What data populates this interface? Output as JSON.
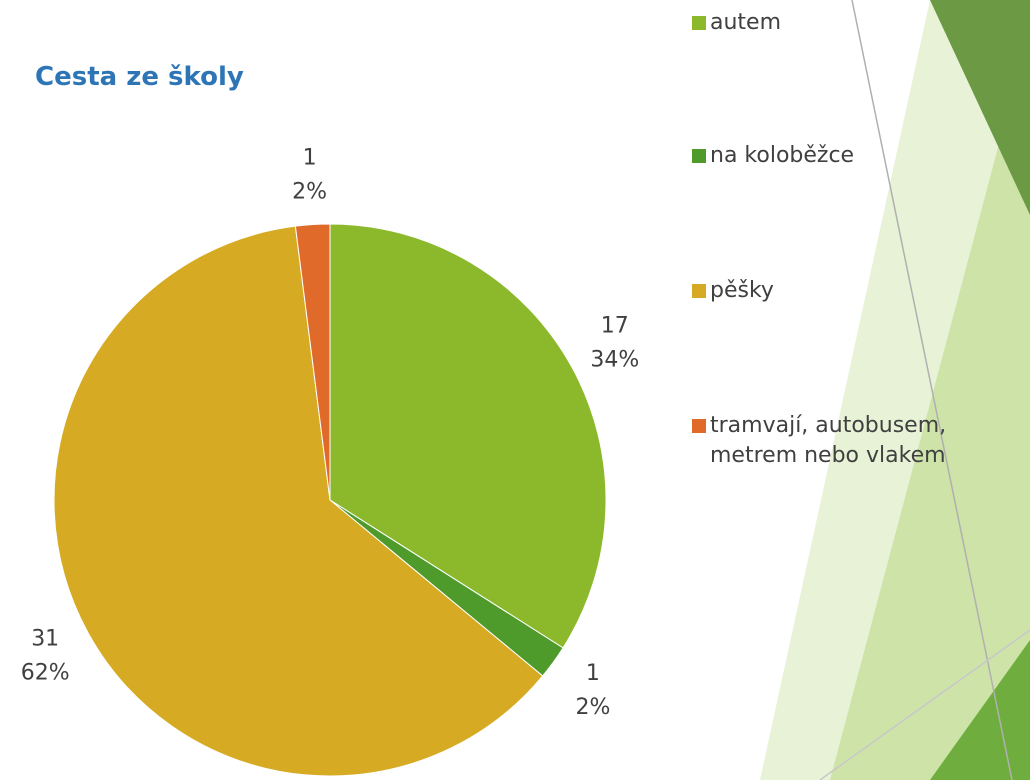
{
  "chart_data": {
    "type": "pie",
    "title": "Cesta ze školy",
    "categories": [
      "autem",
      "na koloběžce",
      "pěšky",
      "tramvají, autobusem, metrem nebo vlakem"
    ],
    "values": [
      17,
      1,
      31,
      1
    ],
    "percent_labels": [
      "34%",
      "2%",
      "62%",
      "2%"
    ],
    "colors": [
      "#8cb82c",
      "#4e9a2a",
      "#d6aa22",
      "#e06a2a"
    ],
    "legend": "right"
  }
}
